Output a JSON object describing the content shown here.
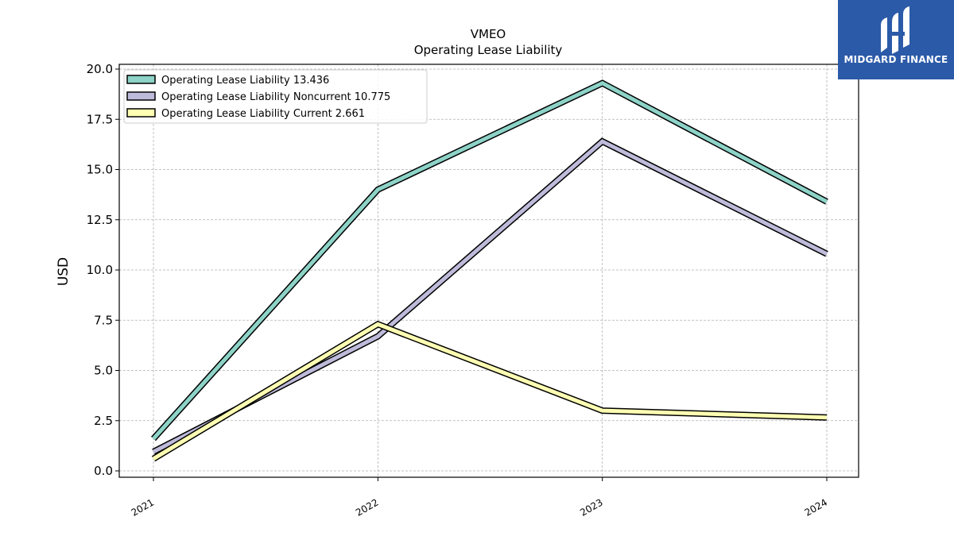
{
  "chart_data": {
    "type": "line",
    "title": "VMEO",
    "subtitle": "Operating Lease Liability",
    "xlabel": "",
    "ylabel": "USD",
    "categories": [
      "2021",
      "2022",
      "2023",
      "2024"
    ],
    "ylim": [
      -0.3,
      20.3
    ],
    "yticks": [
      "0.0",
      "2.5",
      "5.0",
      "7.5",
      "10.0",
      "12.5",
      "15.0",
      "17.5",
      "20.0"
    ],
    "grid": true,
    "legend_position": "top-left",
    "series": [
      {
        "name": "Operating Lease Liability",
        "legend_value": "13.436",
        "color": "#8dd3c7",
        "values": [
          1.6,
          14.0,
          19.3,
          13.4
        ]
      },
      {
        "name": "Operating Lease Liability Noncurrent",
        "legend_value": "10.775",
        "color": "#bebada",
        "values": [
          0.95,
          6.7,
          16.4,
          10.8
        ]
      },
      {
        "name": "Operating Lease Liability Current",
        "legend_value": "2.661",
        "color": "#ffffb3",
        "values": [
          0.6,
          7.3,
          3.0,
          2.66
        ]
      }
    ]
  },
  "logo": {
    "text": "MIDGARD FINANCE",
    "color": "#2b5aa8"
  }
}
